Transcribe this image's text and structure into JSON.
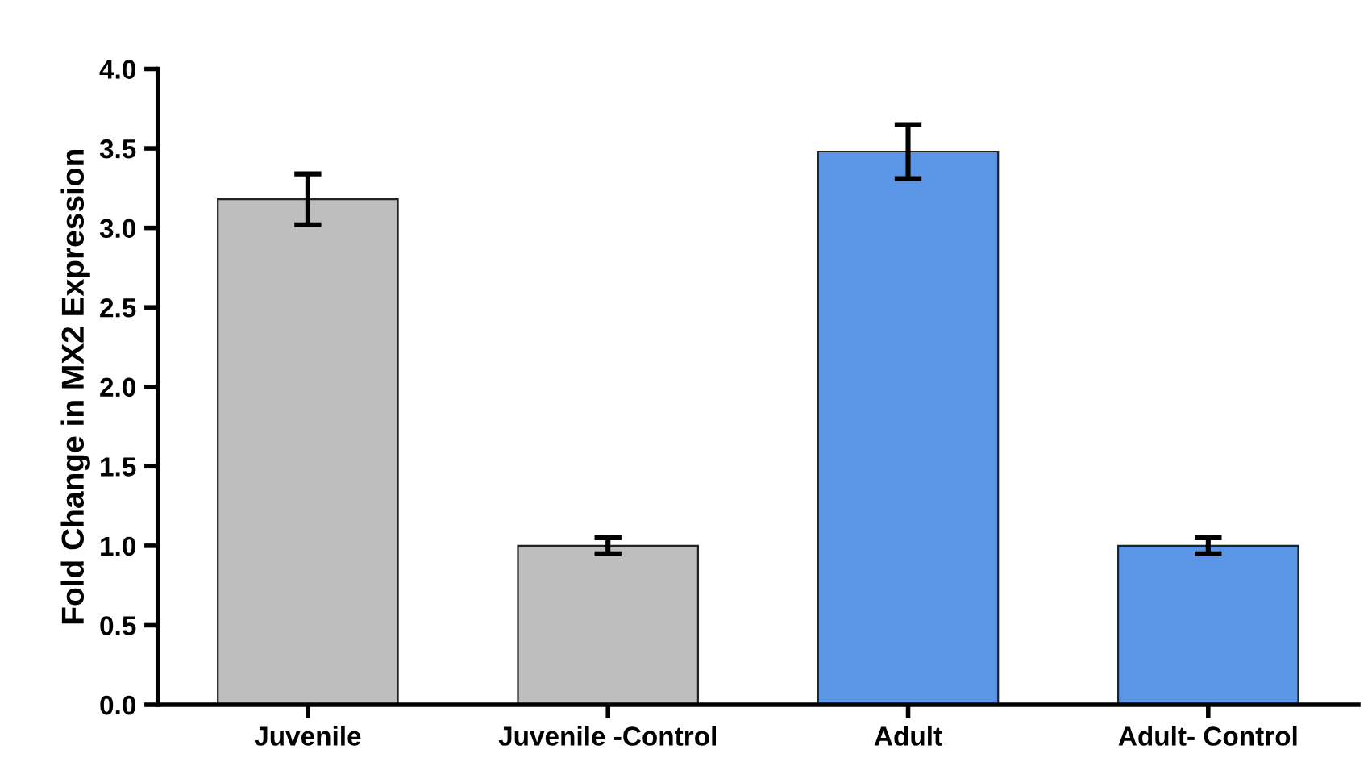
{
  "chart_data": {
    "type": "bar",
    "ylabel": "Fold Change in MX2 Expression",
    "categories": [
      "Juvenile",
      "Juvenile -Control",
      "Adult",
      "Adult- Control"
    ],
    "values": [
      3.18,
      1.0,
      3.48,
      1.0
    ],
    "errors": [
      0.16,
      0.05,
      0.17,
      0.05
    ],
    "colors": [
      "#bebebe",
      "#bebebe",
      "#5b96e6",
      "#5b96e6"
    ],
    "ylim": [
      0,
      4.0
    ],
    "yticks": [
      {
        "value": 0,
        "label": "0.0"
      },
      0.5,
      {
        "value": 1,
        "label": "1.0"
      },
      1.5,
      {
        "value": 2,
        "label": "2.0"
      },
      2.5,
      {
        "value": 3,
        "label": "3.0"
      },
      3.5,
      {
        "value": 4,
        "label": "4.0"
      }
    ],
    "grid": false,
    "legend": false
  }
}
